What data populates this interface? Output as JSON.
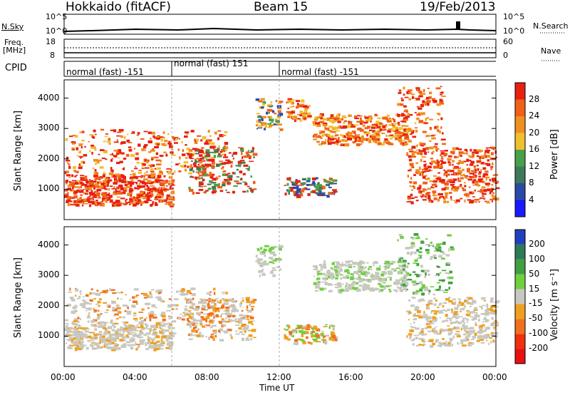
{
  "header": {
    "station": "Hokkaido (fitACF)",
    "beam": "Beam 15",
    "date": "19/Feb/2013"
  },
  "top_panels": {
    "nsky_label": "N.Sky",
    "nsky_ticks": [
      "10^5",
      "10^0"
    ],
    "nsearch_label": "N.Search",
    "nsearch_ticks": [
      "10^5",
      "10^0"
    ],
    "freq_label_1": "Freq.",
    "freq_label_2": "[MHz]",
    "freq_ticks": [
      "18",
      "8"
    ],
    "nave_label": "Nave",
    "nave_ticks": [
      "60",
      "0"
    ],
    "cpid_label": "CPID",
    "cpid_segments": [
      {
        "label": "normal (fast) -151",
        "start_hour": 0,
        "end_hour": 6
      },
      {
        "label": "normal (fast) 151",
        "start_hour": 6,
        "end_hour": 12
      },
      {
        "label": "normal (fast) -151",
        "start_hour": 12,
        "end_hour": 24
      }
    ]
  },
  "chart_data": [
    {
      "type": "heatmap",
      "name": "power",
      "ylabel": "Slant Range [km]",
      "ylim": [
        0,
        4600
      ],
      "yticks": [
        "1000",
        "2000",
        "3000",
        "4000"
      ],
      "colorbar_label": "Power [dB]",
      "colorbar_ticks": [
        "4",
        "8",
        "12",
        "16",
        "20",
        "24",
        "28"
      ],
      "colorbar_colors": [
        "#1a1aff",
        "#2a4aa8",
        "#3d7a5a",
        "#48a04a",
        "#f0c030",
        "#f09020",
        "#f06018",
        "#e82010"
      ],
      "xlim_hours": [
        0,
        24
      ]
    },
    {
      "type": "heatmap",
      "name": "velocity",
      "ylabel": "Slant Range [km]",
      "ylim": [
        0,
        4600
      ],
      "yticks": [
        "1000",
        "2000",
        "3000",
        "4000"
      ],
      "colorbar_label": "Velocity [m s⁻¹]",
      "colorbar_ticks": [
        "200",
        "100",
        "50",
        "15",
        "-15",
        "-50",
        "-100",
        "-200"
      ],
      "colorbar_colors": [
        "#2040c0",
        "#2e7a56",
        "#3fa040",
        "#70d040",
        "#c8c8c0",
        "#f0a020",
        "#f07020",
        "#f03010",
        "#e81010"
      ],
      "xlim_hours": [
        0,
        24
      ]
    }
  ],
  "x_axis": {
    "label": "Time UT",
    "ticks": [
      "00:00",
      "04:00",
      "08:00",
      "12:00",
      "16:00",
      "20:00",
      "00:00"
    ]
  }
}
